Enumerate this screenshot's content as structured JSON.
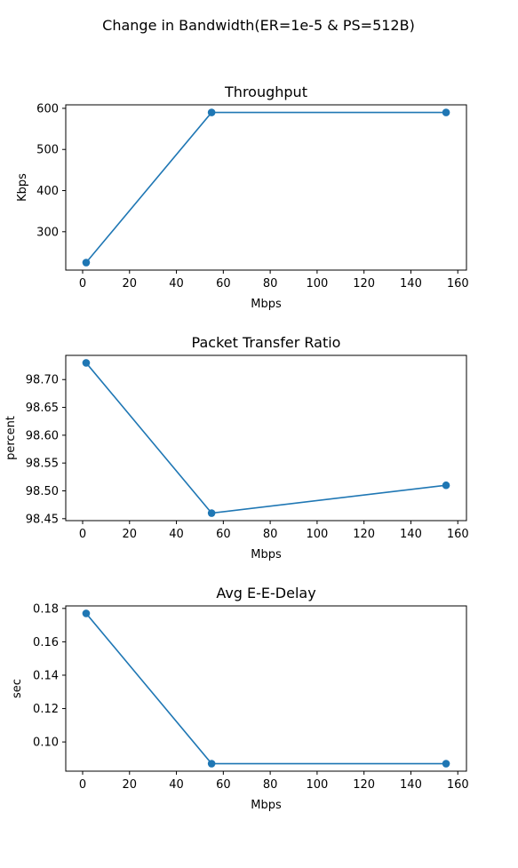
{
  "figure": {
    "suptitle": "Change in Bandwidth(ER=1e-5 & PS=512B)",
    "line_color": "#1f77b4"
  },
  "chart_data": [
    {
      "type": "line",
      "title": "Throughput",
      "xlabel": "Mbps",
      "ylabel": "Kbps",
      "x": [
        1.5,
        55,
        155
      ],
      "series": [
        {
          "values": [
            225,
            590,
            590
          ]
        }
      ],
      "xlim": [
        -7.2,
        163.7
      ],
      "ylim": [
        206.7,
        608.5
      ],
      "xticks": [
        0,
        20,
        40,
        60,
        80,
        100,
        120,
        140,
        160
      ],
      "xtick_labels": [
        "0",
        "20",
        "40",
        "60",
        "80",
        "100",
        "120",
        "140",
        "160"
      ],
      "yticks": [
        300,
        400,
        500,
        600
      ],
      "ytick_labels": [
        "300",
        "400",
        "500",
        "600"
      ],
      "grid": false,
      "markers": true
    },
    {
      "type": "line",
      "title": "Packet Transfer Ratio",
      "xlabel": "Mbps",
      "ylabel": "percent",
      "x": [
        1.5,
        55,
        155
      ],
      "series": [
        {
          "values": [
            98.73,
            98.46,
            98.51
          ]
        }
      ],
      "xlim": [
        -7.2,
        163.7
      ],
      "ylim": [
        98.4465,
        98.7435
      ],
      "xticks": [
        0,
        20,
        40,
        60,
        80,
        100,
        120,
        140,
        160
      ],
      "xtick_labels": [
        "0",
        "20",
        "40",
        "60",
        "80",
        "100",
        "120",
        "140",
        "160"
      ],
      "yticks": [
        98.45,
        98.5,
        98.55,
        98.6,
        98.65,
        98.7
      ],
      "ytick_labels": [
        "98.45",
        "98.50",
        "98.55",
        "98.60",
        "98.65",
        "98.70"
      ],
      "grid": false,
      "markers": true
    },
    {
      "type": "line",
      "title": "Avg E-E-Delay",
      "xlabel": "Mbps",
      "ylabel": "sec",
      "x": [
        1.5,
        55,
        155
      ],
      "series": [
        {
          "values": [
            0.177,
            0.087,
            0.087
          ]
        }
      ],
      "xlim": [
        -7.2,
        163.7
      ],
      "ylim": [
        0.0825,
        0.1815
      ],
      "xticks": [
        0,
        20,
        40,
        60,
        80,
        100,
        120,
        140,
        160
      ],
      "xtick_labels": [
        "0",
        "20",
        "40",
        "60",
        "80",
        "100",
        "120",
        "140",
        "160"
      ],
      "yticks": [
        0.1,
        0.12,
        0.14,
        0.16,
        0.18
      ],
      "ytick_labels": [
        "0.10",
        "0.12",
        "0.14",
        "0.16",
        "0.18"
      ],
      "grid": false,
      "markers": true
    }
  ]
}
